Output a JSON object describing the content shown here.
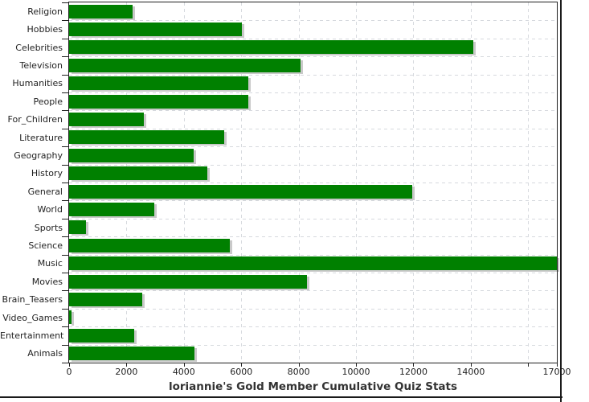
{
  "chart_data": {
    "type": "bar",
    "orientation": "horizontal",
    "title": "loriannie's Gold Member Cumulative Quiz Stats",
    "categories": [
      "Religion",
      "Hobbies",
      "Celebrities",
      "Television",
      "Humanities",
      "People",
      "For_Children",
      "Literature",
      "Geography",
      "History",
      "General",
      "World",
      "Sports",
      "Science",
      "Music",
      "Movies",
      "Brain_Teasers",
      "Video_Games",
      "Entertainment",
      "Animals"
    ],
    "values": [
      2200,
      6020,
      14100,
      8070,
      6250,
      6250,
      2610,
      5400,
      4340,
      4820,
      11960,
      2980,
      600,
      5600,
      17000,
      8290,
      2540,
      90,
      2260,
      4370
    ],
    "xlabel": "",
    "ylabel": "",
    "xlim": [
      0,
      17000
    ],
    "x_ticks": [
      {
        "value": 0,
        "label": "0"
      },
      {
        "value": 2000,
        "label": "2000"
      },
      {
        "value": 4000,
        "label": "4000"
      },
      {
        "value": 6000,
        "label": "6000"
      },
      {
        "value": 8000,
        "label": "8000"
      },
      {
        "value": 10000,
        "label": "10000"
      },
      {
        "value": 12000,
        "label": "12000"
      },
      {
        "value": 14000,
        "label": "14000"
      },
      {
        "value": 16000,
        "label": ""
      },
      {
        "value": 17000,
        "label": "17000"
      }
    ],
    "grid": "dashed",
    "legend": "none",
    "note": "Music bar is clipped at the axis maximum (value reaches plot edge at 17000)"
  },
  "colors": {
    "bar": "#008000",
    "bar_shadow": "#c9c9c9",
    "grid": "#d6d9de",
    "axis": "#1f1f1f",
    "text": "#222222",
    "title_text": "#333333",
    "background": "#ffffff"
  }
}
